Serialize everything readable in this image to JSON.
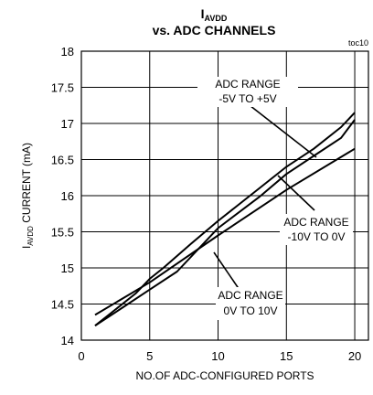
{
  "chart_data": {
    "type": "line",
    "title_main": "I",
    "title_sub": "AVDD",
    "title_line2": "vs. ADC CHANNELS",
    "code": "toc10",
    "ylabel_main_a": "I",
    "ylabel_sub": "AVDD",
    "ylabel_main_b": " CURRENT  (mA)",
    "xlabel": "NO.OF ADC-CONFIGURED PORTS",
    "xlim": [
      0,
      21
    ],
    "ylim": [
      14,
      18
    ],
    "xticks": [
      0,
      5,
      10,
      15,
      20
    ],
    "yticks": [
      14,
      14.5,
      15,
      15.5,
      16,
      16.5,
      17,
      17.5,
      18
    ],
    "grid": true,
    "series": [
      {
        "x": [
          1,
          5,
          10,
          15,
          20
        ],
        "values": [
          14.35,
          14.8,
          15.45,
          16.08,
          16.65
        ]
      },
      {
        "x": [
          1,
          2,
          4,
          5,
          6,
          8,
          10,
          13,
          15,
          17,
          19,
          20
        ],
        "values": [
          14.2,
          14.35,
          14.65,
          14.85,
          15.0,
          15.33,
          15.65,
          16.1,
          16.4,
          16.65,
          16.95,
          17.15
        ]
      },
      {
        "x": [
          1,
          3,
          5,
          7,
          10,
          13,
          15,
          17,
          19,
          20
        ],
        "values": [
          14.2,
          14.45,
          14.7,
          14.95,
          15.55,
          15.98,
          16.3,
          16.55,
          16.8,
          17.05
        ]
      }
    ],
    "annotations": [
      {
        "lines": [
          "ADC RANGE",
          "-5V TO +5V"
        ]
      },
      {
        "lines": [
          "ADC RANGE",
          "-10V TO 0V"
        ]
      },
      {
        "lines": [
          "ADC RANGE",
          "0V TO 10V"
        ]
      }
    ]
  }
}
